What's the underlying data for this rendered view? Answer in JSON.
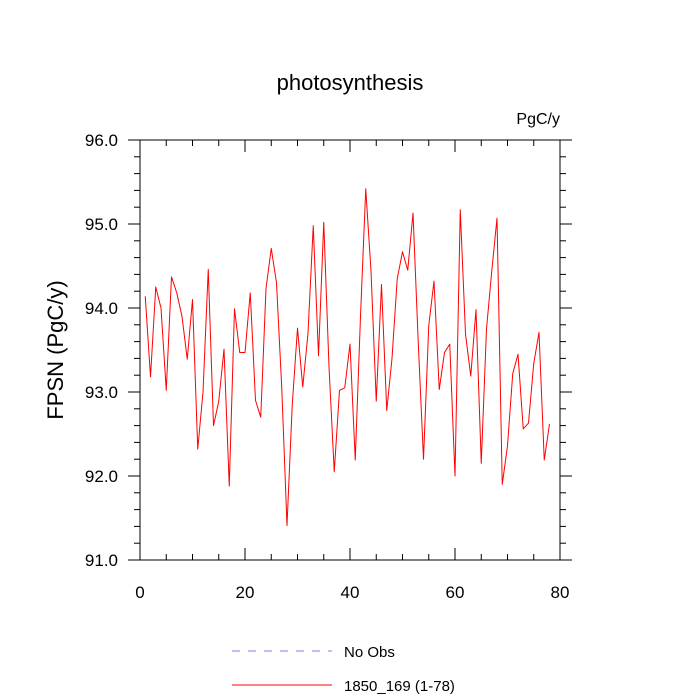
{
  "chart_data": {
    "type": "line",
    "title": "photosynthesis",
    "units_label": "PgC/y",
    "ylabel": "FPSN  (PgC/y)",
    "xlabel": "",
    "xlim": [
      0,
      80
    ],
    "ylim": [
      91.0,
      96.0
    ],
    "x_ticks": [
      0,
      20,
      40,
      60,
      80
    ],
    "x_tick_labels": [
      "0",
      "20",
      "40",
      "60",
      "80"
    ],
    "y_ticks": [
      91.0,
      92.0,
      93.0,
      94.0,
      95.0,
      96.0
    ],
    "y_tick_labels": [
      "91.0",
      "92.0",
      "93.0",
      "94.0",
      "95.0",
      "96.0"
    ],
    "grid": false,
    "legend_position": "bottom-center",
    "series": [
      {
        "name": "No Obs",
        "color": "#8080ff",
        "dashed": true,
        "x": [],
        "y": []
      },
      {
        "name": "1850_169 (1-78)",
        "color": "#ff0000",
        "dashed": false,
        "x": [
          1,
          2,
          3,
          4,
          5,
          6,
          7,
          8,
          9,
          10,
          11,
          12,
          13,
          14,
          15,
          16,
          17,
          18,
          19,
          20,
          21,
          22,
          23,
          24,
          25,
          26,
          27,
          28,
          29,
          30,
          31,
          32,
          33,
          34,
          35,
          36,
          37,
          38,
          39,
          40,
          41,
          42,
          43,
          44,
          45,
          46,
          47,
          48,
          49,
          50,
          51,
          52,
          53,
          54,
          55,
          56,
          57,
          58,
          59,
          60,
          61,
          62,
          63,
          64,
          65,
          66,
          67,
          68,
          69,
          70,
          71,
          72,
          73,
          74,
          75,
          76,
          77,
          78
        ],
        "y": [
          94.14,
          93.18,
          94.25,
          94.0,
          93.02,
          94.37,
          94.18,
          93.9,
          93.39,
          94.1,
          92.32,
          93.0,
          94.46,
          92.6,
          92.89,
          93.51,
          91.88,
          93.99,
          93.47,
          93.47,
          94.18,
          92.9,
          92.7,
          94.23,
          94.71,
          94.3,
          93.05,
          91.41,
          92.85,
          93.76,
          93.06,
          93.7,
          94.98,
          93.43,
          95.02,
          93.3,
          92.05,
          93.02,
          93.05,
          93.57,
          92.19,
          93.9,
          95.42,
          94.44,
          92.89,
          94.28,
          92.78,
          93.4,
          94.35,
          94.67,
          94.45,
          95.13,
          93.59,
          92.2,
          93.79,
          94.32,
          93.03,
          93.47,
          93.57,
          92.0,
          95.17,
          93.69,
          93.19,
          93.98,
          92.15,
          93.75,
          94.44,
          95.07,
          91.9,
          92.36,
          93.22,
          93.45,
          92.56,
          92.63,
          93.34,
          93.71,
          92.19,
          92.62
        ]
      }
    ]
  }
}
